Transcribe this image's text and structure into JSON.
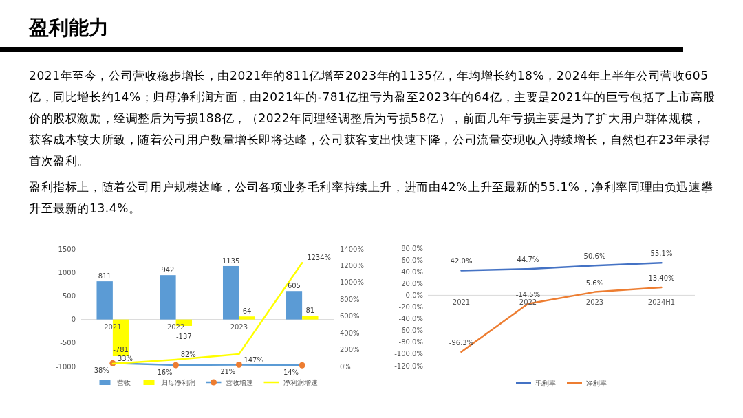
{
  "chart_data": [
    {
      "type": "other",
      "title": "盈利能力",
      "annotations": [
        "2021年至今，公司营收稳步增长，由2021年的811亿增至2023年的1135亿，年均增长约18%，2024年上半年公司营收605亿，同比增长约14%；归母净利润方面，由2021年的-781亿扭亏为盈至2023年的64亿，主要是2021年的巨亏包括了上市高股价的股权激励，经调整后为亏损188亿，（2022年同理经调整后为亏损58亿），前面几年亏损主要是为了扩大用户群体规模，获客成本较大所致，随着公司用户数量增长即将达峰，公司获客支出快速下降，公司流量变现收入持续增长，自然也在23年录得首次盈利。",
        "盈利指标上，随着公司用户规模达峰，公司各项业务毛利率持续上升，进而由42%上升至最新的55.1%，净利率同理由负迅速攀升至最新的13.4%。"
      ]
    },
    {
      "type": "bar",
      "categories": [
        "2021",
        "2022",
        "2023",
        null
      ],
      "ylim": [
        -1000,
        1500
      ],
      "yticks": [
        -1000,
        -500,
        0,
        500,
        1000,
        1500
      ],
      "y2lim": [
        0,
        1400
      ],
      "y2ticks": [
        {
          "value": 0,
          "label": "0%"
        },
        {
          "value": 200,
          "label": "200%"
        },
        {
          "value": 400,
          "label": "400%"
        },
        {
          "value": 600,
          "label": "600%"
        },
        {
          "value": 800,
          "label": "800%"
        },
        {
          "value": 1000,
          "label": "1000%"
        },
        {
          "value": 1200,
          "label": "1200%"
        },
        {
          "value": 1400,
          "label": "1400%"
        }
      ],
      "legend": "bottom",
      "series": [
        {
          "name": "营收",
          "color": "#5b9bd5",
          "values": [
            811,
            942,
            1135,
            605
          ],
          "value_labels": [
            "811",
            "942",
            "1135",
            "605"
          ]
        },
        {
          "name": "归母净利润",
          "color": "#ffff00",
          "values": [
            -781,
            -137,
            64,
            81
          ],
          "value_labels": [
            "-781",
            "-137",
            "64",
            "81"
          ]
        },
        {
          "name": "营收增速",
          "type": "line",
          "axis": "y2",
          "color": "#5b9bd5",
          "colors": [
            "#ed7d31",
            "#ed7d31",
            "#ed7d31",
            "#ed7d31"
          ],
          "marker": "circle",
          "values": [
            38,
            16,
            21,
            14
          ],
          "value_labels": [
            "38%",
            "16%",
            "21%",
            "14%"
          ]
        },
        {
          "name": "净利润增速",
          "type": "line",
          "axis": "y2",
          "color": "#ffff00",
          "values": [
            33,
            82,
            147,
            1234
          ],
          "value_labels": [
            "33%",
            "82%",
            "147%",
            "1234%"
          ]
        }
      ]
    },
    {
      "type": "line",
      "categories": [
        "2021",
        "2022",
        "2023",
        "2024H1"
      ],
      "ylim": [
        -120,
        80
      ],
      "yticks": [
        {
          "value": -120,
          "label": "-120.0%"
        },
        {
          "value": -100,
          "label": "-100.0%"
        },
        {
          "value": -80,
          "label": "-80.0%"
        },
        {
          "value": -60,
          "label": "-60.0%"
        },
        {
          "value": -40,
          "label": "-40.0%"
        },
        {
          "value": -20,
          "label": "-20.0%"
        },
        {
          "value": 0,
          "label": "0.0%"
        },
        {
          "value": 20,
          "label": "20.0%"
        },
        {
          "value": 40,
          "label": "40.0%"
        },
        {
          "value": 60,
          "label": "60.0%"
        },
        {
          "value": 80,
          "label": "80.0%"
        }
      ],
      "legend": "bottom",
      "series": [
        {
          "name": "毛利率",
          "color": "#4472c4",
          "values": [
            42.0,
            44.7,
            50.6,
            55.1
          ],
          "value_labels": [
            "42.0%",
            "44.7%",
            "50.6%",
            "55.1%"
          ]
        },
        {
          "name": "净利率",
          "color": "#ed7d31",
          "values": [
            -96.3,
            -14.5,
            5.6,
            13.4
          ],
          "value_labels": [
            "-96.3%",
            "-14.5%",
            "5.6%",
            "13.40%"
          ]
        }
      ]
    }
  ]
}
